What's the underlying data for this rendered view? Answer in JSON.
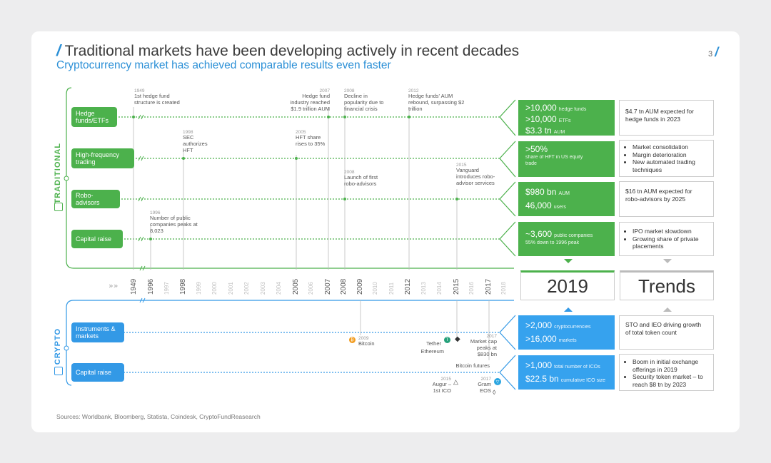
{
  "page": {
    "title": "Traditional markets have been developing actively in recent decades",
    "subtitle": "Cryptocurrency market has achieved comparable results even faster",
    "page_number": "3",
    "sources": "Sources: Worldbank, Bloomberg, Statista, Coindesk, CryptoFundReasearch"
  },
  "sections": {
    "traditional": "TRADITIONAL",
    "crypto": "CRYPTO"
  },
  "rows": {
    "hedge": "Hedge funds/ETFs",
    "hft": "High-frequency trading",
    "robo": "Robo-advisors",
    "capital": "Capital raise",
    "instruments": "Instruments & markets",
    "crypto_capital": "Capital raise"
  },
  "annotations": {
    "a1949_year": "1949",
    "a1949_text": "1st hedge fund structure is created",
    "a2007_year": "2007",
    "a2007_text": "Hedge fund industry reached $1.9 trillion AUM",
    "a2008_year": "2008",
    "a2008_text": "Decline in popularity due to financial crisis",
    "a2012_year": "2012",
    "a2012_text": "Hedge funds' AUM rebound, surpassing $2 trillion",
    "a1998_year": "1998",
    "a1998_text": "SEC authorizes HFT",
    "a2005_year": "2005",
    "a2005_text": "HFT share rises to 35%",
    "a2008b_year": "2008",
    "a2008b_text": "Launch of first robo-advisors",
    "a2015_year": "2015",
    "a2015_text": "Vanguard introduces robo-advisor services",
    "a1996_year": "1996",
    "a1996_text": "Number of public companies peaks at 8,023",
    "c2009_year": "2009",
    "c2009_text": "Bitcoin",
    "c2017_year": "2017",
    "c2017_text": "Market cap peaks at $830 bn",
    "c_tether": "Tether",
    "c_ethereum": "Ethereum",
    "c_futures": "Bitcoin futures",
    "c2015_year": "2015",
    "c2015_text": "Augur – 1st ICO",
    "c2017b_year": "2017",
    "c2017b_text": "Gram EOS"
  },
  "metrics": {
    "hedge_1_big": ">10,000",
    "hedge_1_small": "hedge funds",
    "hedge_2_big": ">10,000",
    "hedge_2_small": "ETFs",
    "hedge_3_big": "$3.3 tn",
    "hedge_3_small": "AUM",
    "hft_big": ">50%",
    "hft_small": "share of HFT in US equity trade",
    "robo_1_big": "$980 bn",
    "robo_1_small": "AUM",
    "robo_2_big": "46,000",
    "robo_2_small": "users",
    "cap_big": "~3,600",
    "cap_small": "public companies",
    "cap_small2": "55% down to 1996 peak",
    "ins_1_big": ">2,000",
    "ins_1_small": "cryptocurrencies",
    "ins_2_big": ">16,000",
    "ins_2_small": "markets",
    "ico_1_big": ">1,000",
    "ico_1_small": "total number of ICOs",
    "ico_2_big": "$22.5 bn",
    "ico_2_small": "cumulative ICO size"
  },
  "trends": {
    "hedge": "$4.7 tn AUM expected for hedge funds in 2023",
    "hft": [
      "Market consolidation",
      "Margin deterioration",
      "New automated trading techniques"
    ],
    "robo": "$16 tn AUM expected for robo-advisors by 2025",
    "capital": [
      "IPO market slowdown",
      "Growing share of private placements"
    ],
    "instruments": "STO and IEO driving growth of total token count",
    "ico": [
      "Boom in initial exchange offerings in 2019",
      "Security token market – to reach $8 tn by 2023"
    ]
  },
  "columns": {
    "year_box": "2019",
    "trends_box": "Trends"
  },
  "axis_years": [
    "1949",
    "1996",
    "1997",
    "1998",
    "1999",
    "2000",
    "2001",
    "2002",
    "2003",
    "2004",
    "2005",
    "2006",
    "2007",
    "2008",
    "2009",
    "2010",
    "2011",
    "2012",
    "2013",
    "2014",
    "2015",
    "2016",
    "2017",
    "2018"
  ],
  "axis_bold": [
    "1949",
    "1996",
    "1998",
    "2005",
    "2007",
    "2008",
    "2009",
    "2012",
    "2015",
    "2017"
  ],
  "colors": {
    "green": "#4cb14c",
    "blue": "#36a2ee",
    "title_blue": "#2a8fd6"
  }
}
